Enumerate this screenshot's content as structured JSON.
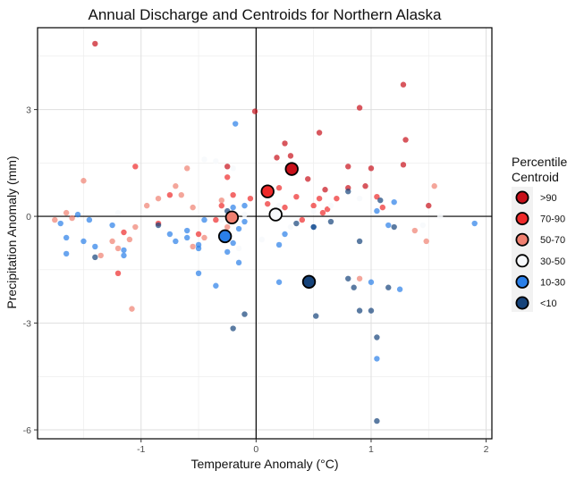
{
  "chart_data": {
    "type": "scatter",
    "title": "Annual Discharge and Centroids for Northern Alaska",
    "xlabel": "Temperature Anomaly (°C)",
    "ylabel": "Precipitation Anomaly (mm)",
    "xlim": [
      -1.9,
      2.05
    ],
    "ylim": [
      -6.25,
      5.3
    ],
    "x_ticks": [
      -1,
      0,
      1,
      2
    ],
    "y_ticks": [
      -6,
      -3,
      0,
      3
    ],
    "grid": true,
    "reference_lines": {
      "x": 0,
      "y": 0
    },
    "legend": {
      "title_lines": [
        "Percentile",
        "Centroid"
      ],
      "placement": "right",
      "entries": [
        {
          "label": ">90",
          "color": "#c8101a"
        },
        {
          "label": "70-90",
          "color": "#ee2a2a"
        },
        {
          "label": "50-70",
          "color": "#f08070"
        },
        {
          "label": "30-50",
          "color": "#f7f9fc"
        },
        {
          "label": "10-30",
          "color": "#2a7fe8"
        },
        {
          "label": "<10",
          "color": "#16437a"
        }
      ]
    },
    "series": [
      {
        "name": ">90",
        "color": "#c8101a",
        "points": [
          [
            -1.4,
            4.85
          ],
          [
            -0.01,
            2.95
          ],
          [
            0.25,
            2.05
          ],
          [
            0.3,
            1.7
          ],
          [
            0.18,
            1.65
          ],
          [
            0.9,
            3.05
          ],
          [
            1.28,
            3.7
          ],
          [
            0.55,
            2.35
          ],
          [
            1.3,
            2.15
          ],
          [
            0.8,
            1.4
          ],
          [
            1.0,
            1.35
          ],
          [
            1.28,
            1.45
          ],
          [
            0.45,
            1.05
          ],
          [
            0.6,
            0.75
          ],
          [
            0.8,
            0.8
          ],
          [
            0.95,
            0.85
          ],
          [
            1.5,
            0.3
          ],
          [
            -0.25,
            1.4
          ]
        ],
        "centroid": [
          0.31,
          1.33
        ]
      },
      {
        "name": "70-90",
        "color": "#ee2a2a",
        "points": [
          [
            -1.05,
            1.4
          ],
          [
            -0.75,
            0.6
          ],
          [
            -0.25,
            1.1
          ],
          [
            -0.2,
            0.6
          ],
          [
            -0.3,
            0.3
          ],
          [
            0.2,
            0.8
          ],
          [
            0.35,
            0.55
          ],
          [
            0.55,
            0.5
          ],
          [
            0.62,
            0.2
          ],
          [
            0.7,
            0.5
          ],
          [
            1.05,
            0.55
          ],
          [
            1.1,
            0.25
          ],
          [
            0.25,
            0.25
          ],
          [
            0.1,
            0.35
          ],
          [
            -0.35,
            -0.1
          ],
          [
            -0.5,
            -0.5
          ],
          [
            -0.85,
            -0.2
          ],
          [
            -1.15,
            -0.45
          ],
          [
            -1.2,
            -1.6
          ],
          [
            -0.05,
            0.5
          ],
          [
            0.5,
            0.3
          ],
          [
            0.4,
            -0.1
          ],
          [
            0.58,
            0.1
          ]
        ],
        "centroid": [
          0.1,
          0.7
        ]
      },
      {
        "name": "50-70",
        "color": "#f08070",
        "points": [
          [
            -1.5,
            1.0
          ],
          [
            -1.65,
            0.1
          ],
          [
            -1.75,
            -0.1
          ],
          [
            -1.6,
            -0.05
          ],
          [
            -1.25,
            -0.7
          ],
          [
            -1.2,
            -0.9
          ],
          [
            -1.1,
            -0.65
          ],
          [
            -1.08,
            -2.6
          ],
          [
            -0.95,
            0.3
          ],
          [
            -0.85,
            0.5
          ],
          [
            -0.65,
            0.6
          ],
          [
            -0.55,
            0.25
          ],
          [
            -0.45,
            -0.6
          ],
          [
            -0.3,
            0.45
          ],
          [
            -0.25,
            -0.3
          ],
          [
            -0.55,
            -0.85
          ],
          [
            -1.35,
            -1.1
          ],
          [
            0.9,
            -1.75
          ],
          [
            1.38,
            -0.4
          ],
          [
            1.48,
            -0.7
          ],
          [
            1.55,
            0.85
          ],
          [
            -0.6,
            1.35
          ],
          [
            -0.7,
            0.85
          ],
          [
            -1.05,
            -0.3
          ]
        ],
        "centroid": [
          -0.21,
          -0.03
        ]
      },
      {
        "name": "30-50",
        "color": "#f7f9fc",
        "points": [
          [
            -0.45,
            1.6
          ],
          [
            -0.35,
            1.55
          ],
          [
            -0.2,
            1.35
          ],
          [
            0.2,
            0.3
          ],
          [
            0.65,
            0.3
          ],
          [
            0.9,
            0.5
          ],
          [
            1.6,
            0.0
          ],
          [
            1.45,
            -0.25
          ],
          [
            -0.15,
            -0.9
          ],
          [
            0.05,
            -0.65
          ],
          [
            -1.2,
            0.1
          ],
          [
            -0.3,
            -0.1
          ],
          [
            0.3,
            -0.3
          ],
          [
            0.5,
            0.15
          ],
          [
            -0.1,
            0.05
          ]
        ],
        "centroid": [
          0.17,
          0.05
        ]
      },
      {
        "name": "10-30",
        "color": "#2a7fe8",
        "points": [
          [
            -1.7,
            -0.2
          ],
          [
            -1.65,
            -0.6
          ],
          [
            -1.55,
            0.05
          ],
          [
            -1.5,
            -0.7
          ],
          [
            -1.45,
            -0.1
          ],
          [
            -1.4,
            -0.85
          ],
          [
            -1.25,
            -0.25
          ],
          [
            -1.15,
            -0.95
          ],
          [
            -1.65,
            -1.05
          ],
          [
            -1.15,
            -1.1
          ],
          [
            -0.75,
            -0.5
          ],
          [
            -0.7,
            -0.7
          ],
          [
            -0.6,
            -0.6
          ],
          [
            -0.5,
            -0.8
          ],
          [
            -0.5,
            -0.9
          ],
          [
            -0.45,
            -0.1
          ],
          [
            -0.5,
            -1.6
          ],
          [
            -0.35,
            -1.95
          ],
          [
            -0.15,
            -1.3
          ],
          [
            -0.25,
            -1.0
          ],
          [
            -0.2,
            -0.75
          ],
          [
            -0.15,
            -0.35
          ],
          [
            -0.1,
            -0.15
          ],
          [
            -0.1,
            0.3
          ],
          [
            -0.2,
            0.25
          ],
          [
            -0.18,
            2.6
          ],
          [
            0.2,
            -1.85
          ],
          [
            0.2,
            -0.8
          ],
          [
            0.25,
            -0.5
          ],
          [
            0.5,
            -0.3
          ],
          [
            1.0,
            -1.85
          ],
          [
            1.05,
            0.15
          ],
          [
            1.15,
            -0.25
          ],
          [
            1.2,
            0.4
          ],
          [
            1.25,
            -2.05
          ],
          [
            1.05,
            -4.0
          ],
          [
            1.9,
            -0.2
          ],
          [
            -0.3,
            -0.5
          ],
          [
            -0.6,
            -0.4
          ]
        ],
        "centroid": [
          -0.27,
          -0.56
        ]
      },
      {
        "name": "<10",
        "color": "#16437a",
        "points": [
          [
            -1.4,
            -1.15
          ],
          [
            -0.85,
            -0.25
          ],
          [
            -0.25,
            0.15
          ],
          [
            -0.2,
            -3.15
          ],
          [
            -0.1,
            -2.75
          ],
          [
            0.35,
            -0.2
          ],
          [
            0.45,
            -1.85
          ],
          [
            0.52,
            -2.8
          ],
          [
            0.8,
            0.7
          ],
          [
            0.8,
            -1.75
          ],
          [
            0.85,
            -2.0
          ],
          [
            0.9,
            -2.65
          ],
          [
            0.9,
            -0.7
          ],
          [
            1.0,
            -2.65
          ],
          [
            1.05,
            -3.4
          ],
          [
            1.05,
            -5.75
          ],
          [
            1.15,
            -2.0
          ],
          [
            1.2,
            -0.3
          ],
          [
            1.08,
            0.45
          ],
          [
            0.5,
            -0.3
          ],
          [
            0.65,
            -0.15
          ]
        ],
        "centroid": [
          0.46,
          -1.84
        ]
      }
    ]
  }
}
